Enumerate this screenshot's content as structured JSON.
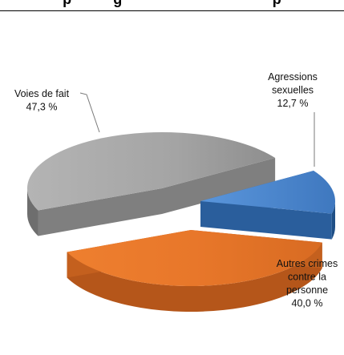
{
  "header": {
    "title_fragment": "p          g                                    p"
  },
  "chart_data": {
    "type": "pie",
    "title": "",
    "categories": [
      "Agressions sexuelles",
      "Autres crimes contre la personne",
      "Voies de fait"
    ],
    "values": [
      12.7,
      40.0,
      47.3
    ],
    "labels": [
      {
        "lines": [
          "Agressions",
          "sexuelles",
          "12,7 %"
        ]
      },
      {
        "lines": [
          "Autres crimes",
          "contre  la",
          "personne",
          "40,0 %"
        ]
      },
      {
        "lines": [
          "Voies de fait",
          "47,3 %"
        ]
      }
    ],
    "colors": {
      "Agressions sexuelles": "#4a86cc",
      "Autres crimes contre la personne": "#e87a2c",
      "Voies de fait": "#a6a6a6"
    },
    "exploded": true,
    "three_d": true
  }
}
